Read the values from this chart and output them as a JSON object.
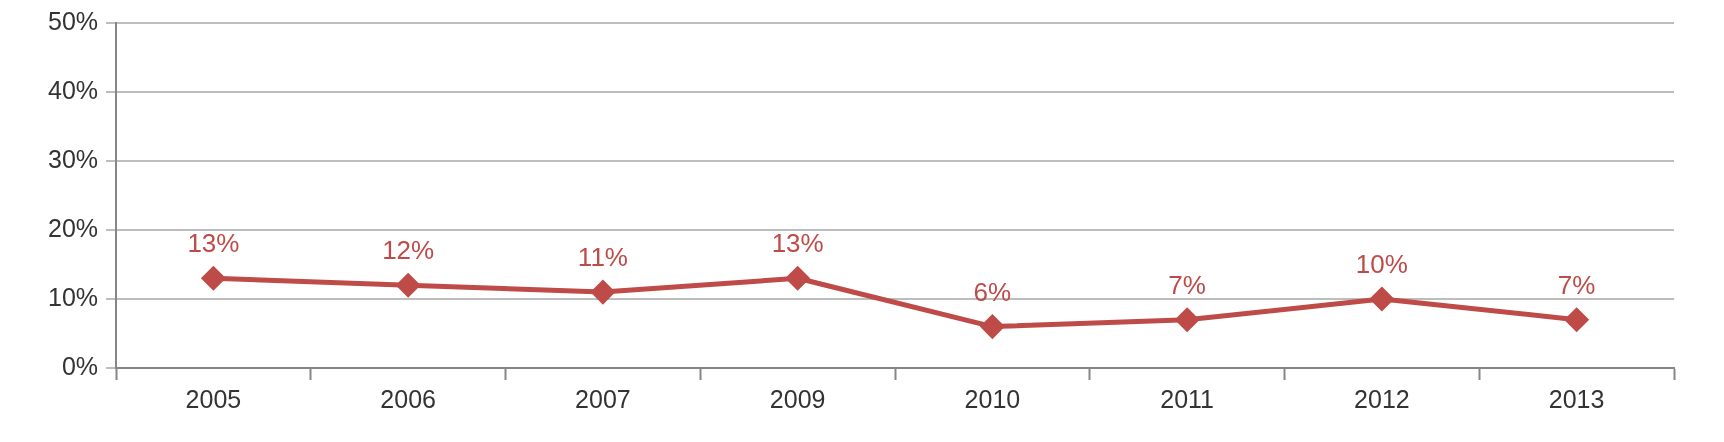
{
  "chart_data": {
    "type": "line",
    "categories": [
      "2005",
      "2006",
      "2007",
      "2009",
      "2010",
      "2011",
      "2012",
      "2013"
    ],
    "series": [
      {
        "color": "#be4b48",
        "values": [
          13,
          12,
          11,
          13,
          6,
          7,
          10,
          7
        ],
        "value_labels": [
          "13%",
          "12%",
          "11%",
          "13%",
          "6%",
          "7%",
          "10%",
          "7%"
        ]
      }
    ],
    "ylim": [
      0,
      50
    ],
    "yticks": [
      {
        "value": 0,
        "label": "0%"
      },
      {
        "value": 10,
        "label": "10%"
      },
      {
        "value": 20,
        "label": "20%"
      },
      {
        "value": 30,
        "label": "30%"
      },
      {
        "value": 40,
        "label": "40%"
      },
      {
        "value": 50,
        "label": "50%"
      }
    ],
    "grid": "y",
    "legend": false,
    "marker": "diamond",
    "line_style": "solid"
  }
}
